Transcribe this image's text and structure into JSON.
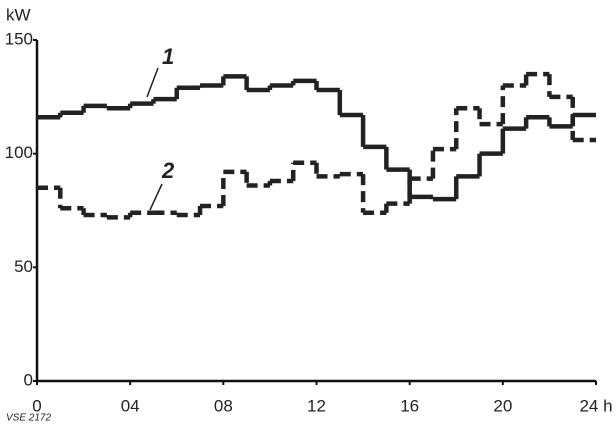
{
  "chart_data": {
    "type": "step",
    "y_label": "kW",
    "note": "VSE 2172",
    "x": [
      0,
      1,
      2,
      3,
      4,
      5,
      6,
      7,
      8,
      9,
      10,
      11,
      12,
      13,
      14,
      15,
      16,
      17,
      18,
      19,
      20,
      21,
      22,
      23
    ],
    "xlim": [
      0,
      24
    ],
    "xticks": [
      0,
      {
        "value": 4,
        "label": "04"
      },
      {
        "value": 8,
        "label": "08"
      },
      12,
      16,
      20,
      {
        "value": 24,
        "label": "24 h"
      }
    ],
    "ylim": [
      0,
      150
    ],
    "yticks": [
      0,
      50,
      100,
      150
    ],
    "series": [
      {
        "name": "1",
        "color": "#222",
        "dashed": false,
        "values": [
          116,
          118,
          121,
          120,
          122,
          124,
          129,
          130,
          134,
          128,
          130,
          132,
          128,
          117,
          103,
          93,
          81,
          80,
          90,
          100,
          111,
          116,
          112,
          117
        ]
      },
      {
        "name": "2",
        "color": "#222",
        "dashed": true,
        "values": [
          85,
          76,
          73,
          72,
          74,
          74,
          73,
          77,
          92,
          86,
          88,
          96,
          90,
          91,
          74,
          78,
          89,
          102,
          120,
          113,
          130,
          135,
          125,
          106
        ]
      }
    ]
  }
}
